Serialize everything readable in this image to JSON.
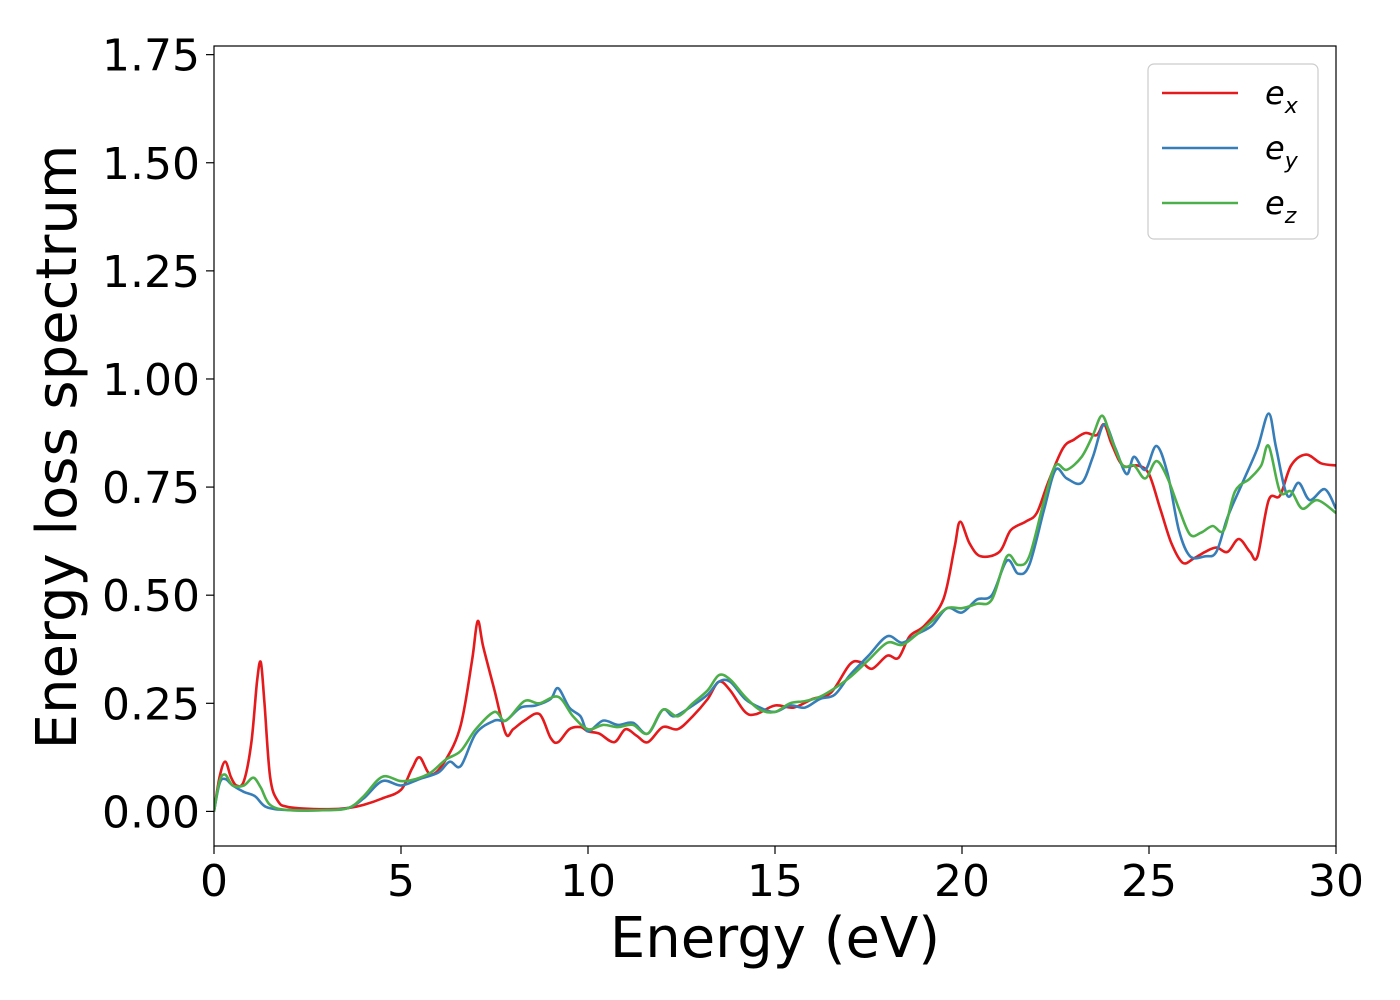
{
  "chart_data": {
    "type": "line",
    "xlabel": "Energy (eV)",
    "ylabel": "Energy loss spectrum",
    "xlim": [
      0,
      30
    ],
    "ylim": [
      -0.08,
      1.77
    ],
    "xticks": [
      "0",
      "5",
      "10",
      "15",
      "20",
      "25",
      "30"
    ],
    "yticks": [
      "0.00",
      "0.25",
      "0.50",
      "0.75",
      "1.00",
      "1.25",
      "1.50",
      "1.75"
    ],
    "grid": false,
    "legend_position": "top-right",
    "series": [
      {
        "name": "e",
        "subscript": "x",
        "color": "#e41a1c",
        "points": [
          [
            0,
            0
          ],
          [
            0.15,
            0.08
          ],
          [
            0.3,
            0.115
          ],
          [
            0.45,
            0.08
          ],
          [
            0.6,
            0.06
          ],
          [
            0.8,
            0.07
          ],
          [
            1.0,
            0.16
          ],
          [
            1.15,
            0.3
          ],
          [
            1.25,
            0.345
          ],
          [
            1.35,
            0.25
          ],
          [
            1.5,
            0.08
          ],
          [
            1.7,
            0.025
          ],
          [
            2.0,
            0.01
          ],
          [
            3.0,
            0.005
          ],
          [
            3.6,
            0.008
          ],
          [
            4.0,
            0.015
          ],
          [
            4.5,
            0.03
          ],
          [
            5.0,
            0.05
          ],
          [
            5.3,
            0.1
          ],
          [
            5.5,
            0.125
          ],
          [
            5.8,
            0.085
          ],
          [
            6.2,
            0.12
          ],
          [
            6.6,
            0.2
          ],
          [
            6.9,
            0.35
          ],
          [
            7.05,
            0.44
          ],
          [
            7.2,
            0.38
          ],
          [
            7.5,
            0.28
          ],
          [
            7.8,
            0.18
          ],
          [
            8.0,
            0.19
          ],
          [
            8.3,
            0.21
          ],
          [
            8.7,
            0.225
          ],
          [
            9.0,
            0.17
          ],
          [
            9.2,
            0.16
          ],
          [
            9.5,
            0.19
          ],
          [
            9.8,
            0.195
          ],
          [
            10.0,
            0.185
          ],
          [
            10.3,
            0.18
          ],
          [
            10.7,
            0.16
          ],
          [
            11.0,
            0.19
          ],
          [
            11.3,
            0.175
          ],
          [
            11.6,
            0.16
          ],
          [
            12.0,
            0.195
          ],
          [
            12.4,
            0.19
          ],
          [
            12.8,
            0.22
          ],
          [
            13.2,
            0.26
          ],
          [
            13.5,
            0.3
          ],
          [
            13.8,
            0.28
          ],
          [
            14.2,
            0.23
          ],
          [
            14.5,
            0.225
          ],
          [
            15.0,
            0.245
          ],
          [
            15.5,
            0.24
          ],
          [
            16.0,
            0.26
          ],
          [
            16.5,
            0.275
          ],
          [
            17.0,
            0.34
          ],
          [
            17.3,
            0.345
          ],
          [
            17.6,
            0.33
          ],
          [
            18.0,
            0.36
          ],
          [
            18.3,
            0.355
          ],
          [
            18.6,
            0.405
          ],
          [
            19.0,
            0.43
          ],
          [
            19.5,
            0.49
          ],
          [
            19.8,
            0.61
          ],
          [
            19.95,
            0.67
          ],
          [
            20.2,
            0.62
          ],
          [
            20.5,
            0.59
          ],
          [
            21.0,
            0.6
          ],
          [
            21.3,
            0.65
          ],
          [
            21.7,
            0.67
          ],
          [
            22.0,
            0.69
          ],
          [
            22.3,
            0.76
          ],
          [
            22.7,
            0.84
          ],
          [
            23.0,
            0.86
          ],
          [
            23.3,
            0.875
          ],
          [
            23.6,
            0.87
          ],
          [
            23.8,
            0.895
          ],
          [
            24.0,
            0.85
          ],
          [
            24.3,
            0.8
          ],
          [
            24.7,
            0.8
          ],
          [
            25.0,
            0.78
          ],
          [
            25.3,
            0.7
          ],
          [
            25.6,
            0.62
          ],
          [
            25.9,
            0.575
          ],
          [
            26.2,
            0.585
          ],
          [
            26.5,
            0.6
          ],
          [
            26.8,
            0.61
          ],
          [
            27.1,
            0.6
          ],
          [
            27.4,
            0.63
          ],
          [
            27.7,
            0.6
          ],
          [
            27.9,
            0.59
          ],
          [
            28.2,
            0.72
          ],
          [
            28.5,
            0.73
          ],
          [
            28.8,
            0.8
          ],
          [
            29.2,
            0.825
          ],
          [
            29.6,
            0.805
          ],
          [
            30.0,
            0.8
          ]
        ]
      },
      {
        "name": "e",
        "subscript": "y",
        "color": "#377eb8",
        "points": [
          [
            0,
            0
          ],
          [
            0.15,
            0.065
          ],
          [
            0.3,
            0.075
          ],
          [
            0.5,
            0.06
          ],
          [
            0.8,
            0.045
          ],
          [
            1.1,
            0.035
          ],
          [
            1.4,
            0.01
          ],
          [
            2.0,
            0.003
          ],
          [
            3.0,
            0.003
          ],
          [
            3.6,
            0.008
          ],
          [
            4.0,
            0.03
          ],
          [
            4.5,
            0.07
          ],
          [
            5.0,
            0.06
          ],
          [
            5.5,
            0.075
          ],
          [
            6.0,
            0.09
          ],
          [
            6.3,
            0.115
          ],
          [
            6.6,
            0.105
          ],
          [
            7.0,
            0.18
          ],
          [
            7.5,
            0.21
          ],
          [
            7.8,
            0.21
          ],
          [
            8.2,
            0.24
          ],
          [
            8.6,
            0.245
          ],
          [
            9.0,
            0.26
          ],
          [
            9.2,
            0.285
          ],
          [
            9.5,
            0.24
          ],
          [
            9.8,
            0.22
          ],
          [
            10.0,
            0.185
          ],
          [
            10.4,
            0.21
          ],
          [
            10.8,
            0.2
          ],
          [
            11.2,
            0.205
          ],
          [
            11.6,
            0.18
          ],
          [
            12.0,
            0.235
          ],
          [
            12.3,
            0.22
          ],
          [
            12.8,
            0.245
          ],
          [
            13.2,
            0.27
          ],
          [
            13.5,
            0.3
          ],
          [
            13.8,
            0.3
          ],
          [
            14.2,
            0.26
          ],
          [
            14.6,
            0.24
          ],
          [
            15.0,
            0.23
          ],
          [
            15.4,
            0.245
          ],
          [
            15.8,
            0.24
          ],
          [
            16.2,
            0.26
          ],
          [
            16.6,
            0.27
          ],
          [
            17.0,
            0.315
          ],
          [
            17.5,
            0.36
          ],
          [
            18.0,
            0.405
          ],
          [
            18.4,
            0.39
          ],
          [
            18.8,
            0.41
          ],
          [
            19.2,
            0.43
          ],
          [
            19.6,
            0.47
          ],
          [
            20.0,
            0.46
          ],
          [
            20.4,
            0.49
          ],
          [
            20.8,
            0.5
          ],
          [
            21.2,
            0.58
          ],
          [
            21.5,
            0.55
          ],
          [
            21.8,
            0.57
          ],
          [
            22.2,
            0.7
          ],
          [
            22.5,
            0.79
          ],
          [
            22.8,
            0.77
          ],
          [
            23.2,
            0.76
          ],
          [
            23.5,
            0.82
          ],
          [
            23.8,
            0.895
          ],
          [
            24.1,
            0.84
          ],
          [
            24.4,
            0.78
          ],
          [
            24.6,
            0.82
          ],
          [
            24.9,
            0.79
          ],
          [
            25.2,
            0.845
          ],
          [
            25.5,
            0.78
          ],
          [
            25.8,
            0.65
          ],
          [
            26.1,
            0.59
          ],
          [
            26.5,
            0.59
          ],
          [
            26.8,
            0.6
          ],
          [
            27.1,
            0.68
          ],
          [
            27.5,
            0.76
          ],
          [
            27.9,
            0.84
          ],
          [
            28.2,
            0.92
          ],
          [
            28.4,
            0.84
          ],
          [
            28.7,
            0.73
          ],
          [
            29.0,
            0.76
          ],
          [
            29.3,
            0.72
          ],
          [
            29.7,
            0.745
          ],
          [
            30.0,
            0.7
          ]
        ]
      },
      {
        "name": "e",
        "subscript": "z",
        "color": "#4daf4a",
        "points": [
          [
            0,
            0
          ],
          [
            0.15,
            0.07
          ],
          [
            0.3,
            0.085
          ],
          [
            0.5,
            0.06
          ],
          [
            0.8,
            0.06
          ],
          [
            1.05,
            0.078
          ],
          [
            1.25,
            0.055
          ],
          [
            1.5,
            0.015
          ],
          [
            2.0,
            0.003
          ],
          [
            3.0,
            0.003
          ],
          [
            3.6,
            0.008
          ],
          [
            4.0,
            0.035
          ],
          [
            4.5,
            0.08
          ],
          [
            5.0,
            0.07
          ],
          [
            5.4,
            0.075
          ],
          [
            5.8,
            0.09
          ],
          [
            6.2,
            0.12
          ],
          [
            6.6,
            0.14
          ],
          [
            7.0,
            0.19
          ],
          [
            7.5,
            0.23
          ],
          [
            7.8,
            0.21
          ],
          [
            8.3,
            0.255
          ],
          [
            8.7,
            0.25
          ],
          [
            9.2,
            0.265
          ],
          [
            9.6,
            0.22
          ],
          [
            10.0,
            0.19
          ],
          [
            10.4,
            0.2
          ],
          [
            10.8,
            0.195
          ],
          [
            11.2,
            0.2
          ],
          [
            11.6,
            0.18
          ],
          [
            12.0,
            0.235
          ],
          [
            12.4,
            0.22
          ],
          [
            12.8,
            0.25
          ],
          [
            13.2,
            0.28
          ],
          [
            13.5,
            0.315
          ],
          [
            13.8,
            0.305
          ],
          [
            14.2,
            0.265
          ],
          [
            14.6,
            0.235
          ],
          [
            15.0,
            0.23
          ],
          [
            15.4,
            0.25
          ],
          [
            15.8,
            0.255
          ],
          [
            16.2,
            0.265
          ],
          [
            16.6,
            0.285
          ],
          [
            17.0,
            0.31
          ],
          [
            17.5,
            0.35
          ],
          [
            18.0,
            0.39
          ],
          [
            18.4,
            0.385
          ],
          [
            18.8,
            0.41
          ],
          [
            19.2,
            0.44
          ],
          [
            19.6,
            0.47
          ],
          [
            20.0,
            0.47
          ],
          [
            20.4,
            0.48
          ],
          [
            20.8,
            0.49
          ],
          [
            21.2,
            0.59
          ],
          [
            21.5,
            0.57
          ],
          [
            21.8,
            0.59
          ],
          [
            22.2,
            0.72
          ],
          [
            22.5,
            0.8
          ],
          [
            22.8,
            0.79
          ],
          [
            23.2,
            0.82
          ],
          [
            23.5,
            0.87
          ],
          [
            23.75,
            0.915
          ],
          [
            24.0,
            0.86
          ],
          [
            24.3,
            0.8
          ],
          [
            24.6,
            0.8
          ],
          [
            24.9,
            0.77
          ],
          [
            25.2,
            0.81
          ],
          [
            25.5,
            0.77
          ],
          [
            25.8,
            0.7
          ],
          [
            26.1,
            0.64
          ],
          [
            26.4,
            0.645
          ],
          [
            26.7,
            0.66
          ],
          [
            27.0,
            0.65
          ],
          [
            27.3,
            0.74
          ],
          [
            27.7,
            0.77
          ],
          [
            28.0,
            0.8
          ],
          [
            28.2,
            0.845
          ],
          [
            28.5,
            0.74
          ],
          [
            28.8,
            0.74
          ],
          [
            29.1,
            0.7
          ],
          [
            29.5,
            0.72
          ],
          [
            30.0,
            0.69
          ]
        ]
      }
    ]
  }
}
